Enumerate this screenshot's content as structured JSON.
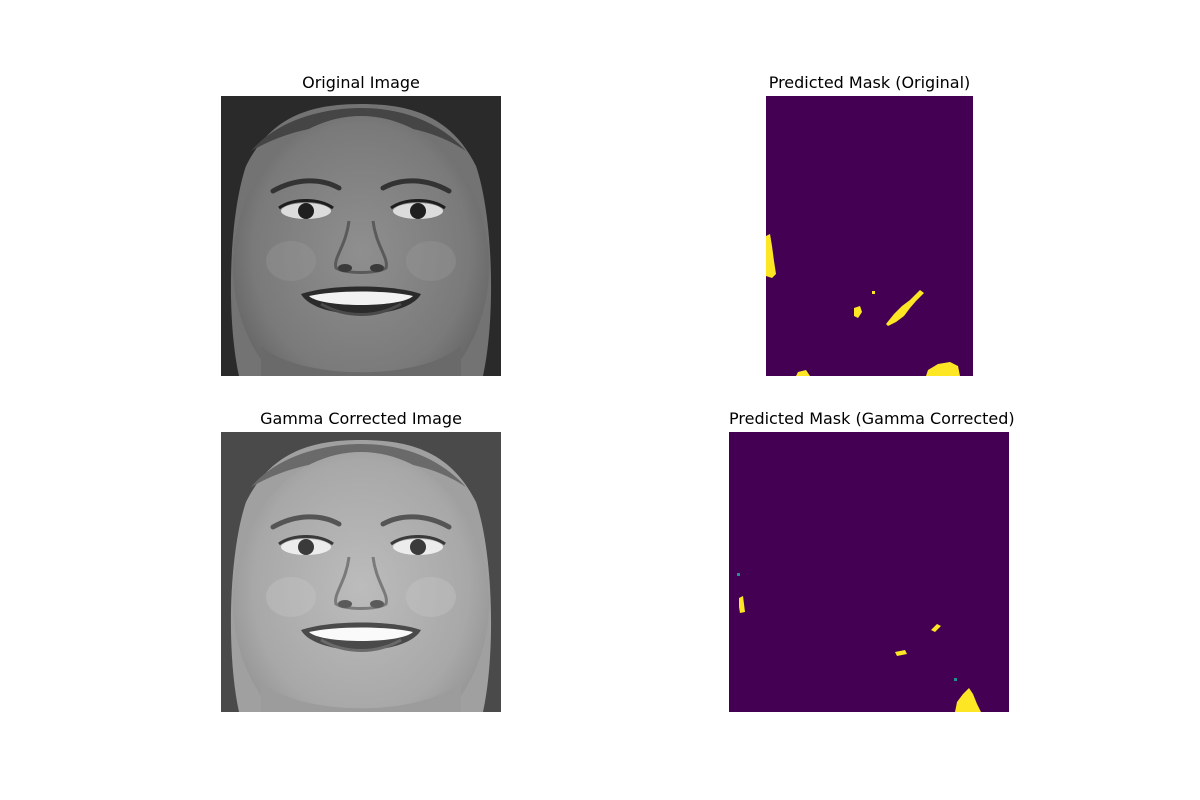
{
  "panels": {
    "original": {
      "title": "Original Image"
    },
    "mask_original": {
      "title": "Predicted Mask (Original)"
    },
    "gamma": {
      "title": "Gamma Corrected Image"
    },
    "mask_gamma": {
      "title": "Predicted Mask (Gamma Corrected)"
    }
  },
  "colors": {
    "mask_background": "#440154",
    "mask_foreground": "#fde725",
    "mask_edge": "#21918c"
  }
}
